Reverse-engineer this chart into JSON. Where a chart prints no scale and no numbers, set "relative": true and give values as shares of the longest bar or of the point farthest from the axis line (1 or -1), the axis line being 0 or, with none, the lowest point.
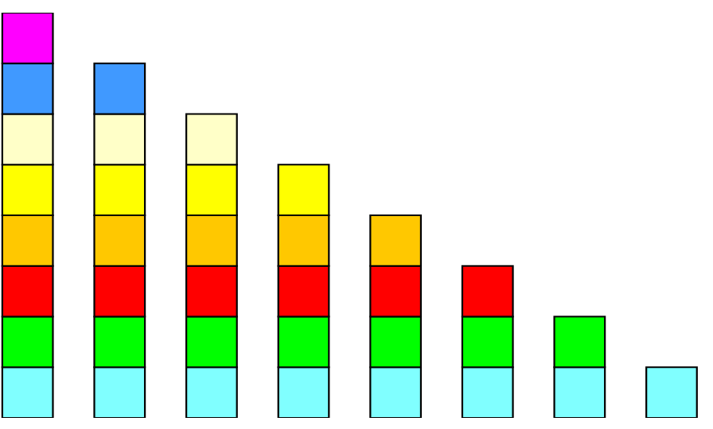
{
  "chart_data": {
    "type": "bar",
    "stacked": true,
    "relative": true,
    "categories": [
      null,
      null,
      null,
      null,
      null,
      null,
      null,
      null
    ],
    "series": [
      {
        "color": "#80ffff",
        "values": [
          0.125,
          0.125,
          0.125,
          0.125,
          0.125,
          0.125,
          0.125,
          0.125
        ]
      },
      {
        "color": "#00ff00",
        "values": [
          0.125,
          0.125,
          0.125,
          0.125,
          0.125,
          0.125,
          0.125,
          null
        ]
      },
      {
        "color": "#ff0000",
        "values": [
          0.125,
          0.125,
          0.125,
          0.125,
          0.125,
          0.125,
          null,
          null
        ]
      },
      {
        "color": "#ffc800",
        "values": [
          0.125,
          0.125,
          0.125,
          0.125,
          0.125,
          null,
          null,
          null
        ]
      },
      {
        "color": "#ffff00",
        "values": [
          0.125,
          0.125,
          0.125,
          0.125,
          null,
          null,
          null,
          null
        ]
      },
      {
        "color": "#ffffc8",
        "values": [
          0.125,
          0.125,
          0.125,
          null,
          null,
          null,
          null,
          null
        ]
      },
      {
        "color": "#4099ff",
        "values": [
          0.125,
          0.125,
          null,
          null,
          null,
          null,
          null,
          null
        ]
      },
      {
        "color": "#ff00ff",
        "values": [
          0.125,
          null,
          null,
          null,
          null,
          null,
          null,
          null
        ]
      }
    ]
  }
}
